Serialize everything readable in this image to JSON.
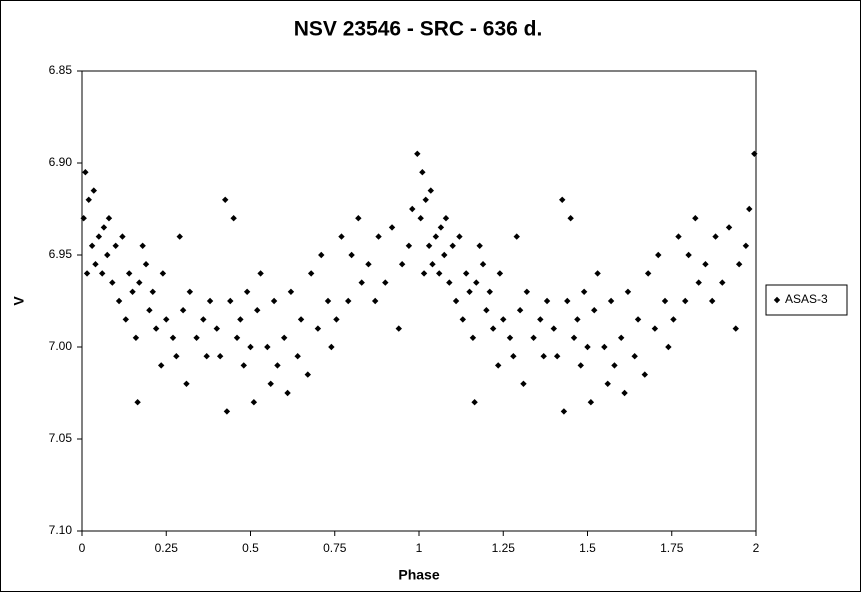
{
  "chart_data": {
    "type": "scatter",
    "title": "NSV 23546 - SRC - 636 d.",
    "x_label": "Phase",
    "y_label": "V",
    "xlim": [
      0,
      2
    ],
    "xticks": [
      0,
      0.25,
      0.5,
      0.75,
      1,
      1.25,
      1.5,
      1.75,
      2
    ],
    "ylim": [
      6.85,
      7.1
    ],
    "y_reversed": true,
    "yticks": [
      {
        "value": 6.85,
        "label": "6.85"
      },
      {
        "value": 6.9,
        "label": "6.90"
      },
      {
        "value": 6.95,
        "label": "6.95"
      },
      {
        "value": 7.0,
        "label": "7.00"
      },
      {
        "value": 7.05,
        "label": "7.05"
      },
      {
        "value": 7.1,
        "label": "7.10"
      }
    ],
    "legend": "right",
    "series": [
      {
        "name": "ASAS-3",
        "color": "#000000",
        "x": [
          0.005,
          0.01,
          0.015,
          0.02,
          0.03,
          0.035,
          0.04,
          0.05,
          0.06,
          0.065,
          0.075,
          0.08,
          0.09,
          0.1,
          0.11,
          0.12,
          0.13,
          0.14,
          0.15,
          0.16,
          0.165,
          0.17,
          0.18,
          0.19,
          0.2,
          0.21,
          0.22,
          0.235,
          0.24,
          0.25,
          0.27,
          0.28,
          0.29,
          0.3,
          0.31,
          0.32,
          0.34,
          0.36,
          0.37,
          0.38,
          0.4,
          0.41,
          0.425,
          0.43,
          0.44,
          0.45,
          0.46,
          0.47,
          0.48,
          0.49,
          0.5,
          0.51,
          0.52,
          0.53,
          0.55,
          0.56,
          0.57,
          0.58,
          0.6,
          0.61,
          0.62,
          0.64,
          0.65,
          0.67,
          0.68,
          0.7,
          0.71,
          0.73,
          0.74,
          0.755,
          0.77,
          0.79,
          0.8,
          0.82,
          0.83,
          0.85,
          0.87,
          0.88,
          0.9,
          0.92,
          0.94,
          0.95,
          0.97,
          0.98,
          0.995,
          1.005,
          1.01,
          1.015,
          1.02,
          1.03,
          1.035,
          1.04,
          1.05,
          1.06,
          1.065,
          1.075,
          1.08,
          1.09,
          1.1,
          1.11,
          1.12,
          1.13,
          1.14,
          1.15,
          1.16,
          1.165,
          1.17,
          1.18,
          1.19,
          1.2,
          1.21,
          1.22,
          1.235,
          1.24,
          1.25,
          1.27,
          1.28,
          1.29,
          1.3,
          1.31,
          1.32,
          1.34,
          1.36,
          1.37,
          1.38,
          1.4,
          1.41,
          1.425,
          1.43,
          1.44,
          1.45,
          1.46,
          1.47,
          1.48,
          1.49,
          1.5,
          1.51,
          1.52,
          1.53,
          1.55,
          1.56,
          1.57,
          1.58,
          1.6,
          1.61,
          1.62,
          1.64,
          1.65,
          1.67,
          1.68,
          1.7,
          1.71,
          1.73,
          1.74,
          1.755,
          1.77,
          1.79,
          1.8,
          1.82,
          1.83,
          1.85,
          1.87,
          1.88,
          1.9,
          1.92,
          1.94,
          1.95,
          1.97,
          1.98,
          1.995
        ],
        "values": [
          6.93,
          6.905,
          6.96,
          6.92,
          6.945,
          6.915,
          6.955,
          6.94,
          6.96,
          6.935,
          6.95,
          6.93,
          6.965,
          6.945,
          6.975,
          6.94,
          6.985,
          6.96,
          6.97,
          6.995,
          7.03,
          6.965,
          6.945,
          6.955,
          6.98,
          6.97,
          6.99,
          7.01,
          6.96,
          6.985,
          6.995,
          7.005,
          6.94,
          6.98,
          7.02,
          6.97,
          6.995,
          6.985,
          7.005,
          6.975,
          6.99,
          7.005,
          6.92,
          7.035,
          6.975,
          6.93,
          6.995,
          6.985,
          7.01,
          6.97,
          7.0,
          7.03,
          6.98,
          6.96,
          7.0,
          7.02,
          6.975,
          7.01,
          6.995,
          7.025,
          6.97,
          7.005,
          6.985,
          7.015,
          6.96,
          6.99,
          6.95,
          6.975,
          7.0,
          6.985,
          6.94,
          6.975,
          6.95,
          6.93,
          6.965,
          6.955,
          6.975,
          6.94,
          6.965,
          6.935,
          6.99,
          6.955,
          6.945,
          6.925,
          6.895,
          6.93,
          6.905,
          6.96,
          6.92,
          6.945,
          6.915,
          6.955,
          6.94,
          6.96,
          6.935,
          6.95,
          6.93,
          6.965,
          6.945,
          6.975,
          6.94,
          6.985,
          6.96,
          6.97,
          6.995,
          7.03,
          6.965,
          6.945,
          6.955,
          6.98,
          6.97,
          6.99,
          7.01,
          6.96,
          6.985,
          6.995,
          7.005,
          6.94,
          6.98,
          7.02,
          6.97,
          6.995,
          6.985,
          7.005,
          6.975,
          6.99,
          7.005,
          6.92,
          7.035,
          6.975,
          6.93,
          6.995,
          6.985,
          7.01,
          6.97,
          7.0,
          7.03,
          6.98,
          6.96,
          7.0,
          7.02,
          6.975,
          7.01,
          6.995,
          7.025,
          6.97,
          7.005,
          6.985,
          7.015,
          6.96,
          6.99,
          6.95,
          6.975,
          7.0,
          6.985,
          6.94,
          6.975,
          6.95,
          6.93,
          6.965,
          6.955,
          6.975,
          6.94,
          6.965,
          6.935,
          6.99,
          6.955,
          6.945,
          6.925,
          6.895
        ]
      }
    ]
  }
}
